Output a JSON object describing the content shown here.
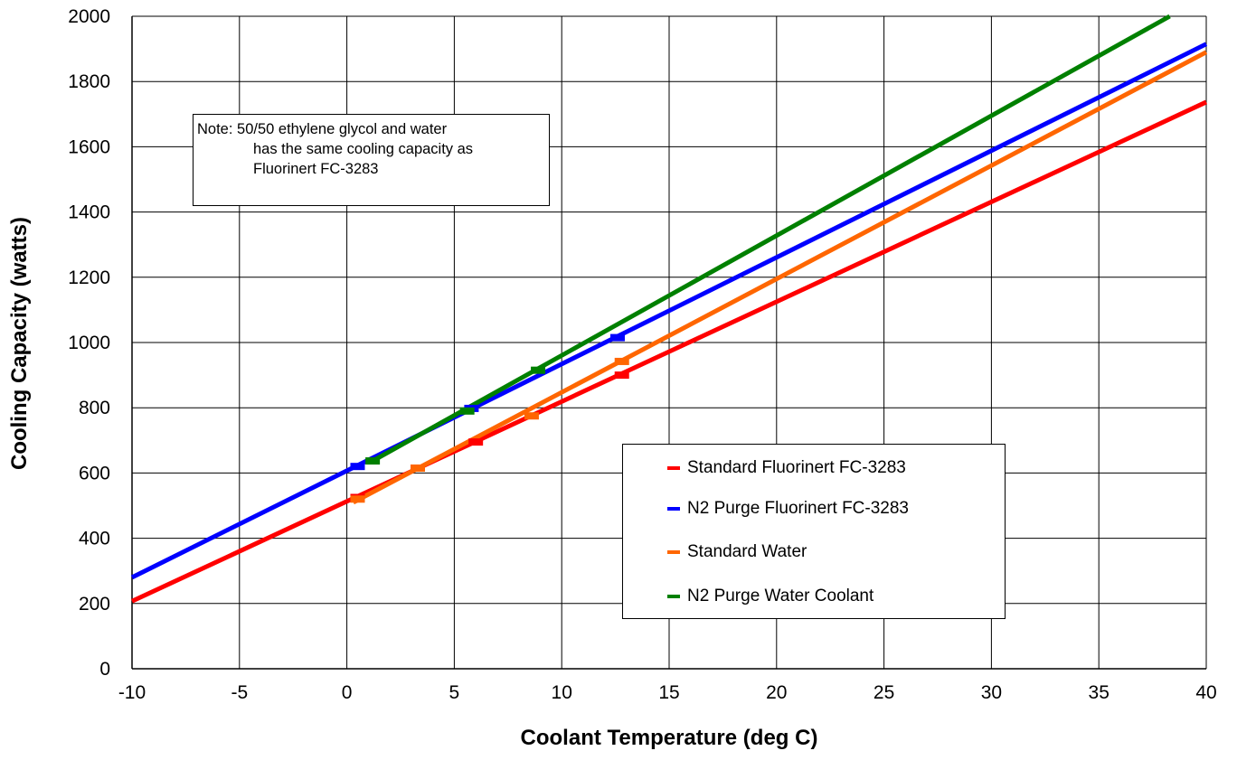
{
  "chart_data": {
    "type": "line",
    "title": "",
    "xlabel": "Coolant  Temperature (deg C)",
    "ylabel": "Cooling Capacity (watts)",
    "xlim": [
      -10,
      40
    ],
    "ylim": [
      0,
      2000
    ],
    "x_ticks": [
      "-10",
      "-5",
      "0",
      "5",
      "10",
      "15",
      "20",
      "25",
      "30",
      "35",
      "40"
    ],
    "y_ticks": [
      "0",
      "200",
      "400",
      "600",
      "800",
      "1000",
      "1200",
      "1400",
      "1600",
      "1800",
      "2000"
    ],
    "grid": true,
    "legend_position": "bottom-right",
    "note": {
      "line1": "Note: 50/50 ethylene glycol and water",
      "line2": "has the same cooling capacity as",
      "line3": "Fluorinert FC-3283"
    },
    "series": [
      {
        "name": "Standard Fluorinert FC-3283",
        "color": "#ff0000",
        "line": [
          [
            -10,
            207
          ],
          [
            40,
            1737
          ]
        ],
        "points": [
          [
            0.5,
            525
          ],
          [
            6,
            695
          ],
          [
            12.8,
            900
          ]
        ]
      },
      {
        "name": "N2 Purge Fluorinert FC-3283",
        "color": "#0000ff",
        "line": [
          [
            -10,
            280
          ],
          [
            40,
            1915
          ]
        ],
        "points": [
          [
            0.5,
            620
          ],
          [
            5.8,
            798
          ],
          [
            12.6,
            1015
          ]
        ]
      },
      {
        "name": "Standard Water",
        "color": "#ff6600",
        "line": [
          [
            0.3,
            510
          ],
          [
            40,
            1890
          ]
        ],
        "points": [
          [
            0.5,
            520
          ],
          [
            3.3,
            615
          ],
          [
            8.6,
            775
          ],
          [
            12.8,
            942
          ]
        ]
      },
      {
        "name": "N2 Purge Water Coolant",
        "color": "#008000",
        "line": [
          [
            1.2,
            637
          ],
          [
            38.3,
            2000
          ]
        ],
        "points": [
          [
            1.2,
            637
          ],
          [
            5.6,
            790
          ],
          [
            8.9,
            915
          ]
        ]
      }
    ]
  }
}
